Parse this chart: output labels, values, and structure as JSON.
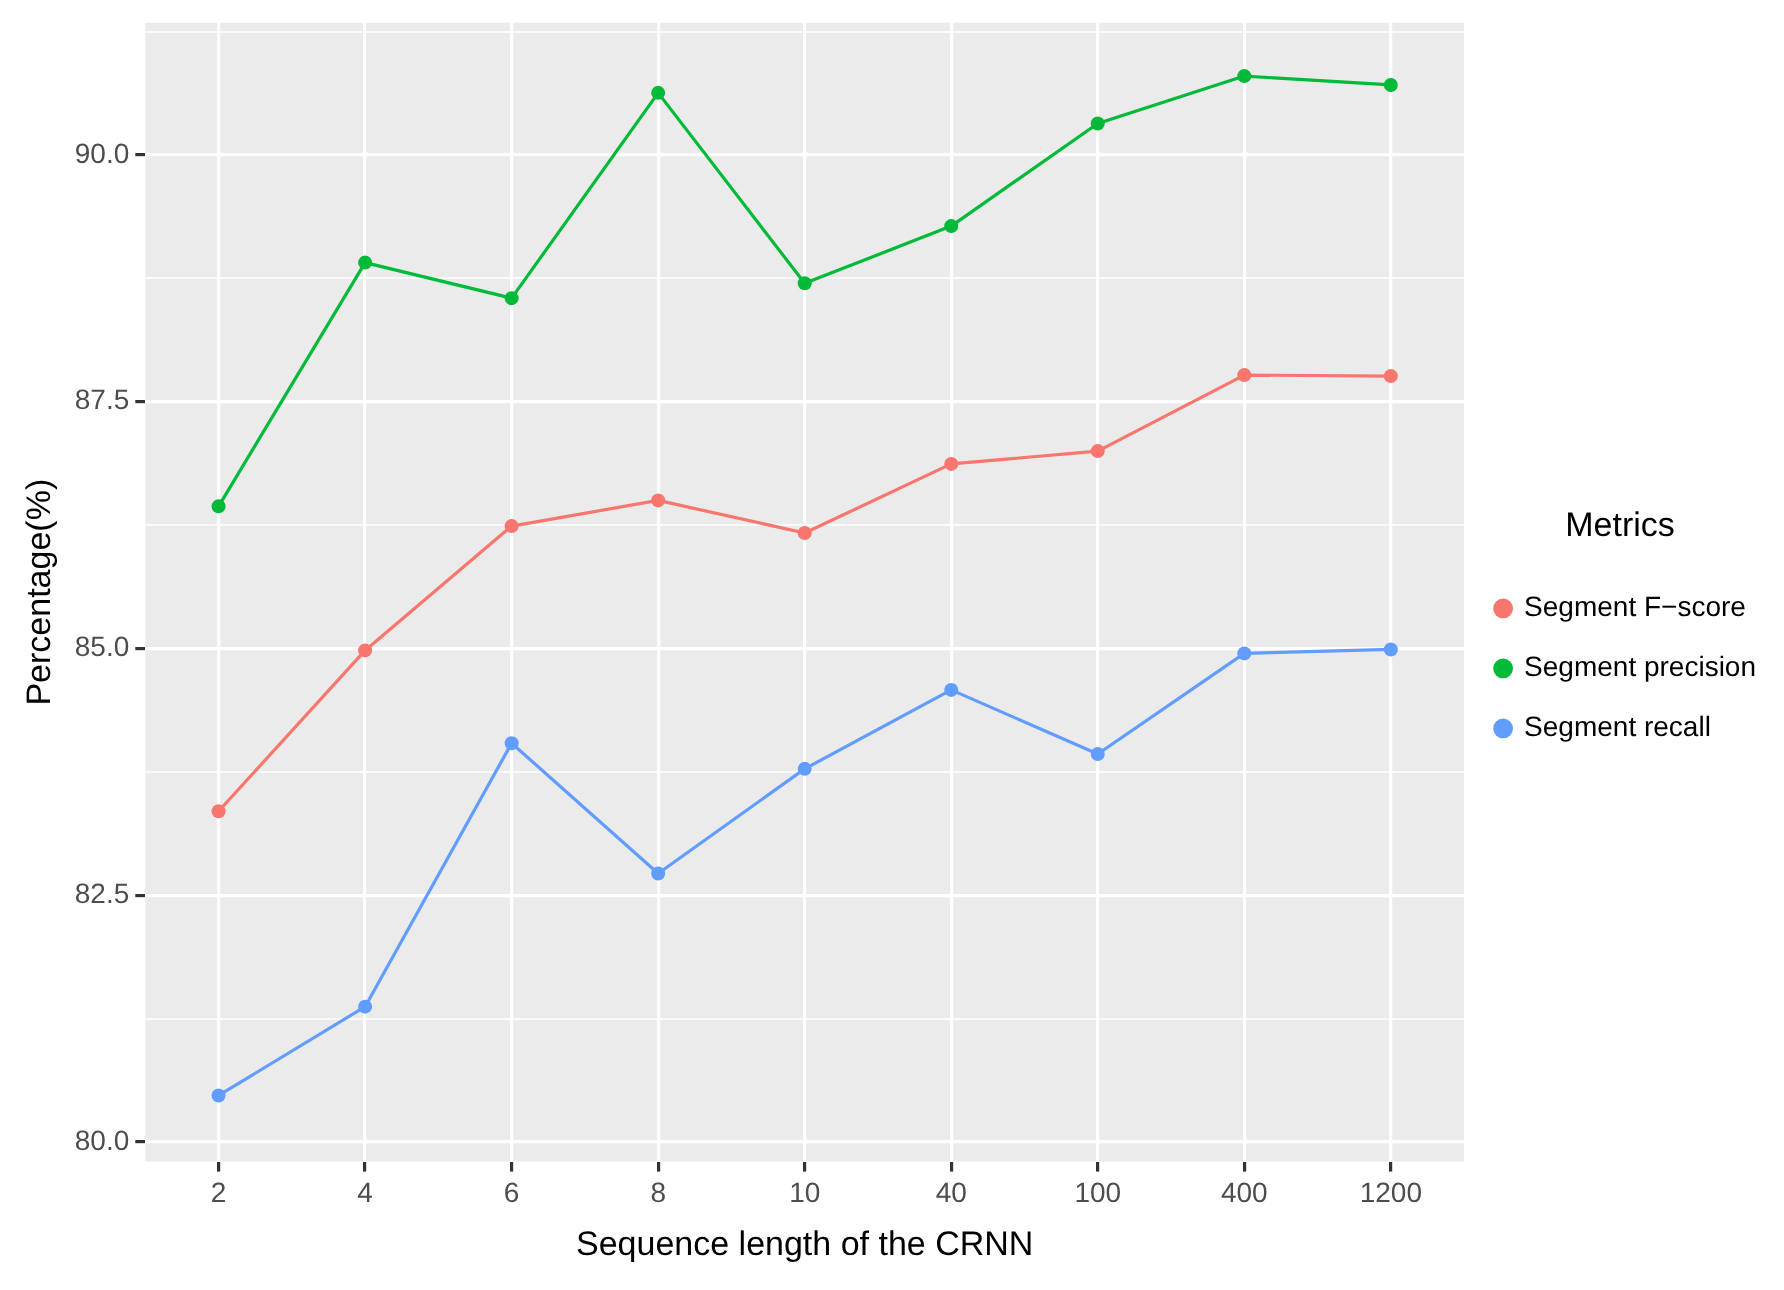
{
  "chart_data": {
    "type": "line",
    "xlabel": "Sequence length of the CRNN",
    "ylabel": "Percentage(%)",
    "legend_title": "Metrics",
    "categories": [
      "2",
      "4",
      "6",
      "8",
      "10",
      "40",
      "100",
      "400",
      "1200"
    ],
    "series": [
      {
        "name": "Segment F−score",
        "color": "#f8766d",
        "values": [
          83.35,
          84.98,
          86.24,
          86.5,
          86.17,
          86.87,
          87.0,
          87.77,
          87.76
        ]
      },
      {
        "name": "Segment precision",
        "color": "#00ba38",
        "values": [
          86.44,
          88.91,
          88.55,
          90.63,
          88.7,
          89.28,
          90.32,
          90.8,
          90.71
        ]
      },
      {
        "name": "Segment recall",
        "color": "#619cff",
        "values": [
          80.47,
          81.37,
          84.04,
          82.72,
          83.78,
          84.58,
          83.93,
          84.95,
          84.99
        ]
      }
    ],
    "ylim": [
      79.8,
      91.34
    ],
    "yticks": [
      {
        "value": 80,
        "label": "80.0"
      },
      {
        "value": 81.25,
        "label": null
      },
      {
        "value": 82.5,
        "label": "82.5"
      },
      {
        "value": 83.75,
        "label": null
      },
      {
        "value": 85,
        "label": "85.0"
      },
      {
        "value": 86.25,
        "label": null
      },
      {
        "value": 87.5,
        "label": "87.5"
      },
      {
        "value": 88.75,
        "label": null
      },
      {
        "value": 90,
        "label": "90.0"
      },
      {
        "value": 91.25,
        "label": null
      }
    ],
    "grid": true,
    "legend": "right",
    "marker": "circle",
    "line_style": "solid"
  }
}
